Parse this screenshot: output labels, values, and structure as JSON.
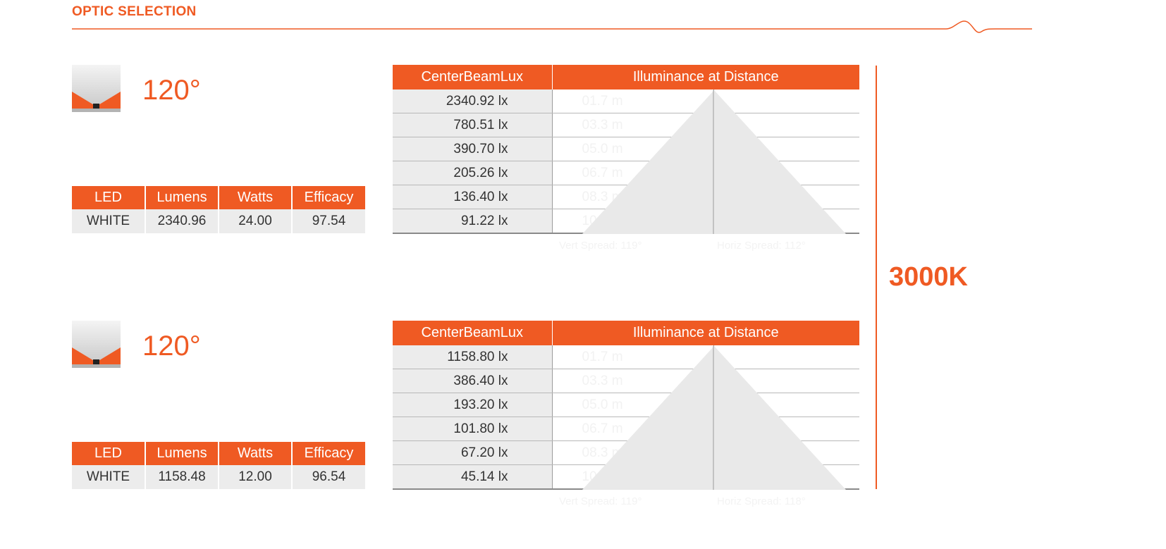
{
  "header": {
    "title": "OPTIC SELECTION"
  },
  "colors": {
    "accent": "#ef5a23",
    "cell_bg": "#ececec"
  },
  "cct": "3000K",
  "optics": [
    {
      "angle": "120°",
      "icon": "wide-beam-optic-icon",
      "spec_headers": [
        "LED",
        "Lumens",
        "Watts",
        "Efficacy"
      ],
      "spec_values": [
        "WHITE",
        "2340.96",
        "24.00",
        "97.54"
      ],
      "lux_headers": [
        "CenterBeamLux",
        "Illuminance at Distance"
      ],
      "rows": [
        {
          "lux": "2340.92 lx",
          "dist_prefix": "01.7",
          "dist_suffix": " m"
        },
        {
          "lux": "780.51 lx",
          "dist_prefix": "03.3",
          "dist_suffix": " m"
        },
        {
          "lux": "390.70 lx",
          "dist_prefix": "05.0",
          "dist_suffix": " m"
        },
        {
          "lux": "205.26 lx",
          "dist_prefix": "06.7",
          "dist_suffix": " m"
        },
        {
          "lux": "136.40 lx",
          "dist_prefix": "08.3",
          "dist_suffix": " m"
        },
        {
          "lux": "91.22 lx",
          "dist_prefix": "10",
          "dist_suffix": ".0 m"
        }
      ],
      "vert_spread": "Vert Spread: 119°",
      "horiz_spread": "Horiz Spread: 112°"
    },
    {
      "angle": "120°",
      "icon": "wide-beam-optic-icon",
      "spec_headers": [
        "LED",
        "Lumens",
        "Watts",
        "Efficacy"
      ],
      "spec_values": [
        "WHITE",
        "1158.48",
        "12.00",
        "96.54"
      ],
      "lux_headers": [
        "CenterBeamLux",
        "Illuminance at Distance"
      ],
      "rows": [
        {
          "lux": "1158.80 lx",
          "dist_prefix": "01.7",
          "dist_suffix": " m"
        },
        {
          "lux": "386.40 lx",
          "dist_prefix": "03.3",
          "dist_suffix": " m"
        },
        {
          "lux": "193.20 lx",
          "dist_prefix": "05.0",
          "dist_suffix": " m"
        },
        {
          "lux": "101.80 lx",
          "dist_prefix": "06.7",
          "dist_suffix": " m"
        },
        {
          "lux": "67.20 lx",
          "dist_prefix": "08.3",
          "dist_suffix": " m"
        },
        {
          "lux": "45.14 lx",
          "dist_prefix": "10",
          "dist_suffix": ".0 m"
        }
      ],
      "vert_spread": "Vert Spread: 119°",
      "horiz_spread": "Horiz Spread: 118°"
    }
  ]
}
